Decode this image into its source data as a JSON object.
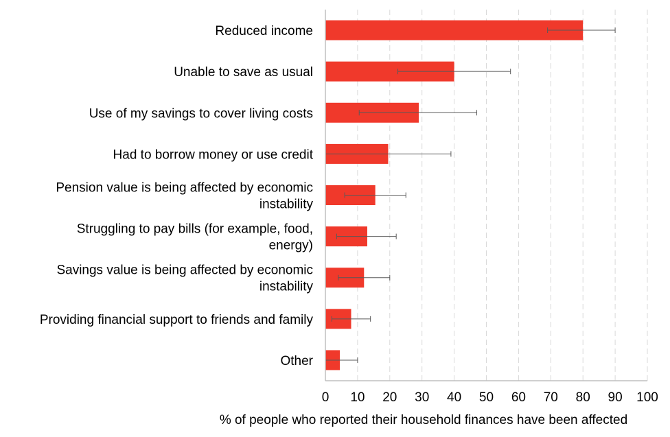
{
  "chart_data": {
    "type": "bar",
    "orientation": "horizontal",
    "categories": [
      "Reduced income",
      "Unable to save as usual",
      "Use of my savings to cover living costs",
      "Had to borrow money or use credit",
      "Pension value is being affected by economic instability",
      "Struggling to pay bills (for example, food, energy)",
      "Savings value is being affected by economic instability",
      "Providing financial support to friends and family",
      "Other"
    ],
    "category_lines": [
      [
        "Reduced income"
      ],
      [
        "Unable to save as usual"
      ],
      [
        "Use of my savings to cover living costs"
      ],
      [
        "Had to borrow money or use credit"
      ],
      [
        "Pension value is being affected by economic",
        "instability"
      ],
      [
        "Struggling to pay bills (for example, food,",
        "energy)"
      ],
      [
        "Savings value is being affected by economic",
        "instability"
      ],
      [
        "Providing financial support to friends and family"
      ],
      [
        "Other"
      ]
    ],
    "values": [
      80,
      40,
      29,
      19.5,
      15.5,
      13,
      12,
      8,
      4.5
    ],
    "error_low": [
      69,
      22.5,
      10.5,
      0,
      6,
      3.5,
      4,
      2,
      0
    ],
    "error_high": [
      90,
      57.5,
      47,
      39,
      25,
      22,
      20,
      14,
      10
    ],
    "xlabel": "% of people who reported their household finances have been affected",
    "xlim": [
      0,
      100
    ],
    "xticks": [
      0,
      10,
      20,
      30,
      40,
      50,
      60,
      70,
      80,
      90,
      100
    ],
    "grid": "vertical dashed",
    "bar_color": "#f0392b",
    "error_bar_color": "#595959",
    "grid_color": "#d9d9d9",
    "axis_color": "#bfbfbf"
  }
}
